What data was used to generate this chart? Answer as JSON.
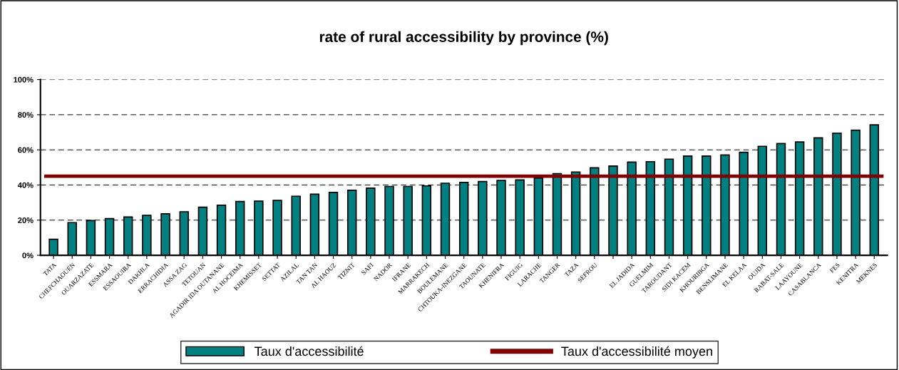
{
  "chart_data": {
    "type": "bar",
    "title": "rate of rural accessibility by province (%)",
    "categories": [
      "TATA",
      "CHEFCHAOUEN",
      "OUARZAZATE",
      "ESSMARA",
      "ESSAOUIRA",
      "DAKHLA",
      "ERRACHIDIA",
      "ASSA ZAG",
      "TETOUAN",
      "AGADIR IDA OUTANANE",
      "AL HOCEIMA",
      "KHEMISSET",
      "SETTAT",
      "AZILAL",
      "TAN TAN",
      "AL HAOUZ",
      "TIZNIT",
      "SAFI",
      "NADOR",
      "IFRANE",
      "MARRAKECH",
      "BOULEMANE",
      "CHTOUKA-INEZGANE",
      "TAOUNATE",
      "KHENIFRA",
      "FIGUIG",
      "LARACHE",
      "TANGER",
      "TAZA",
      "SEFROU",
      null,
      "EL JADIDA",
      "GUELMIM",
      "TAROUDANT",
      "SIDI KACEM",
      "KHOURIBGA",
      "BENSLIMANE",
      "EL KELAA",
      "OUJDA",
      "RABAT-SALE",
      "LAAYOUNE",
      "CASABLANCA",
      "FES",
      "KENITRA",
      "MEKNES"
    ],
    "series": [
      {
        "name": "Taux d'accessibilité",
        "color": "#008080",
        "values": [
          9.1,
          18.6,
          19.8,
          20.9,
          21.8,
          22.7,
          23.6,
          24.8,
          27.4,
          28.5,
          30.6,
          30.8,
          31.2,
          33.6,
          34.8,
          35.8,
          37,
          38.2,
          39.2,
          39.2,
          39.5,
          41,
          41.5,
          42,
          42.6,
          42.9,
          44,
          46.5,
          47.4,
          49.8,
          50.8,
          53,
          53.3,
          54.7,
          56.5,
          56.5,
          57.1,
          58.6,
          62,
          63.6,
          64.5,
          66.8,
          69.5,
          71.2,
          74.2
        ]
      }
    ],
    "ref_lines": [
      {
        "axis": "y",
        "value": 45,
        "label": "Taux d'accessibilité moyen",
        "color": "#800000",
        "line_style": "solid"
      }
    ],
    "ylim": [
      0,
      100
    ],
    "yticks": [
      {
        "value": 0,
        "label": "0%"
      },
      {
        "value": 20,
        "label": "20%"
      },
      {
        "value": 40,
        "label": "40%"
      },
      {
        "value": 60,
        "label": "60%"
      },
      {
        "value": 80,
        "label": "80%"
      },
      {
        "value": 100,
        "label": "100%"
      }
    ],
    "grid": "y",
    "legend": "bottom"
  }
}
